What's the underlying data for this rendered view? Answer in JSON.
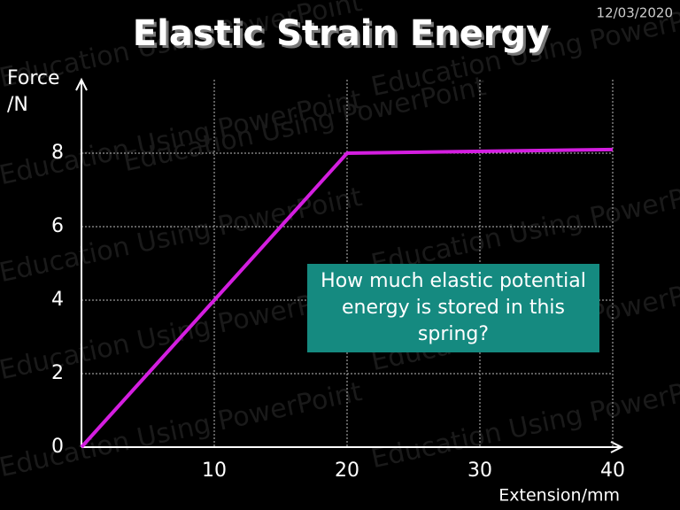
{
  "chart_data": {
    "type": "line",
    "title": "Elastic Strain Energy",
    "date": "12/03/2020",
    "y_label": "Force /N",
    "x_label": "Extension/mm",
    "annotation": "How much elastic potential energy is stored in this spring?",
    "watermark": "Education Using PowerPoint",
    "x": [
      0,
      20,
      40
    ],
    "values": [
      0,
      8,
      8.1
    ],
    "color": "#d41ee0",
    "xlim": [
      0,
      40
    ],
    "ylim": [
      0,
      10
    ],
    "xticks": [
      10,
      20,
      30,
      40
    ],
    "yticks": [
      0,
      2,
      4,
      6,
      8
    ],
    "grid": true
  }
}
